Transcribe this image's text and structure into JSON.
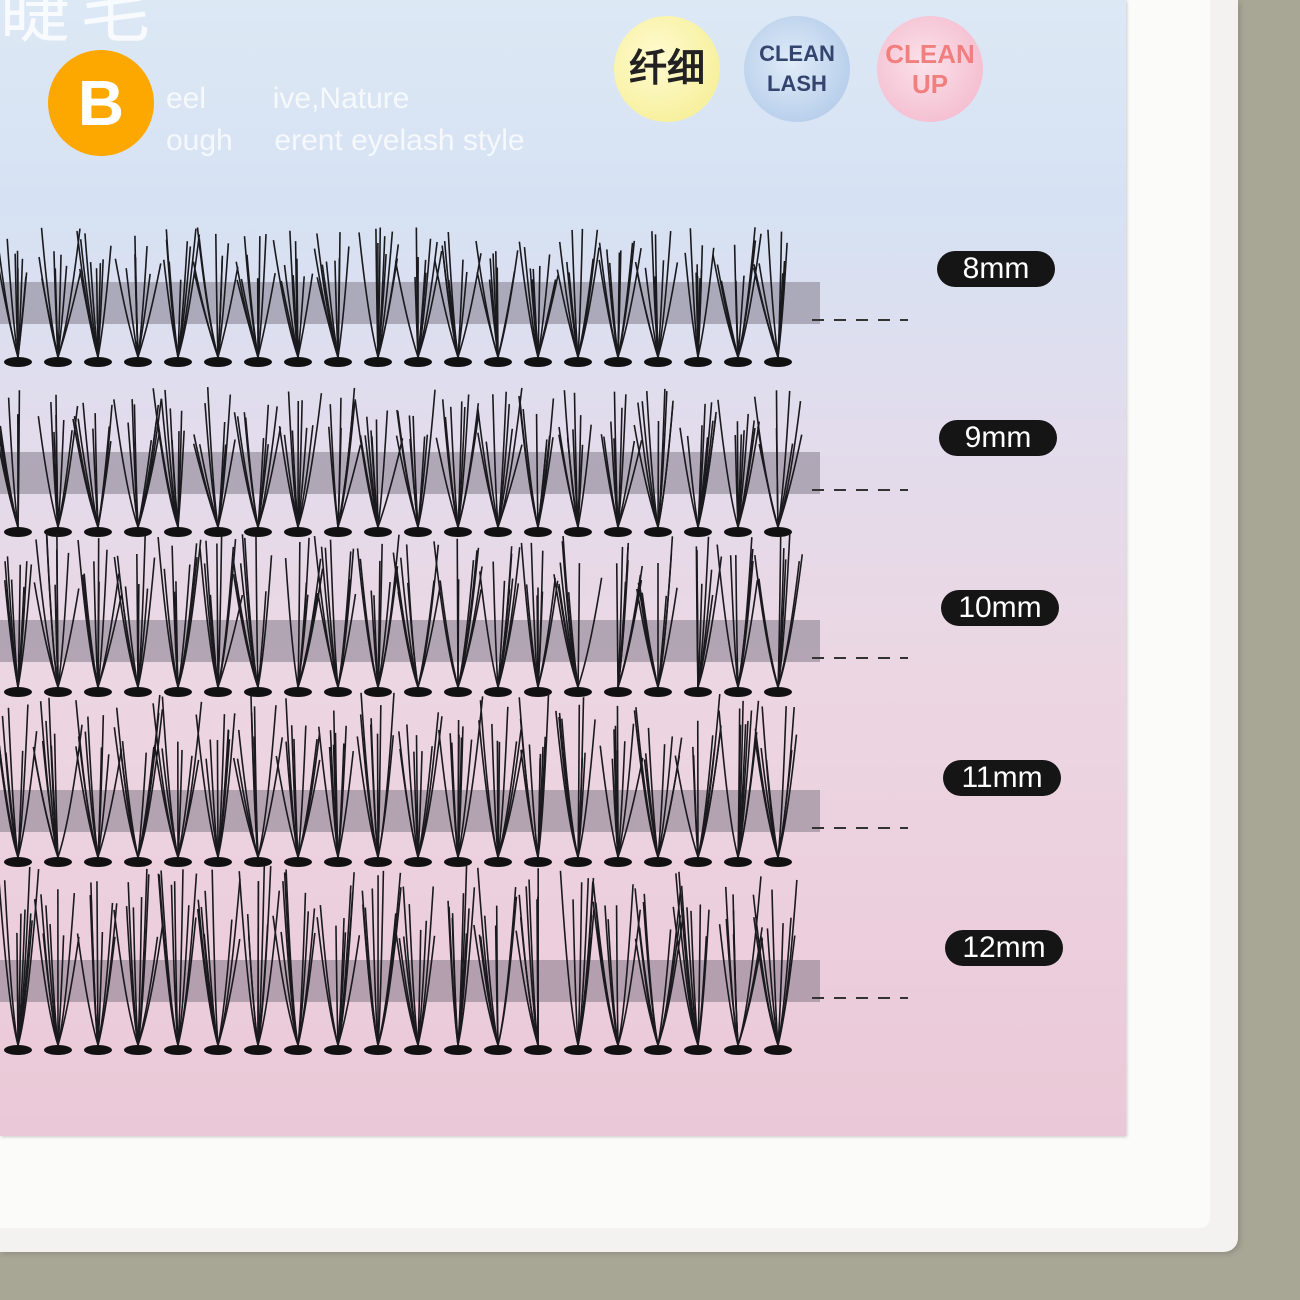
{
  "logo_text": "睫毛",
  "badge": {
    "label": "B",
    "color": "#fca800"
  },
  "ghost_text": [
    "eel        ive,Nature",
    "ough     erent eyelash style"
  ],
  "feature_badges": [
    {
      "lines": [
        "纤细"
      ],
      "color": "#f4ec8c"
    },
    {
      "lines": [
        "CLEAN",
        "LASH"
      ],
      "color": "#a9c4e6"
    },
    {
      "lines": [
        "CLEAN",
        "UP"
      ],
      "color": "#f2b3c8"
    }
  ],
  "lash_rows": [
    {
      "length": "8mm"
    },
    {
      "length": "9mm"
    },
    {
      "length": "10mm"
    },
    {
      "length": "11mm"
    },
    {
      "length": "12mm"
    }
  ]
}
